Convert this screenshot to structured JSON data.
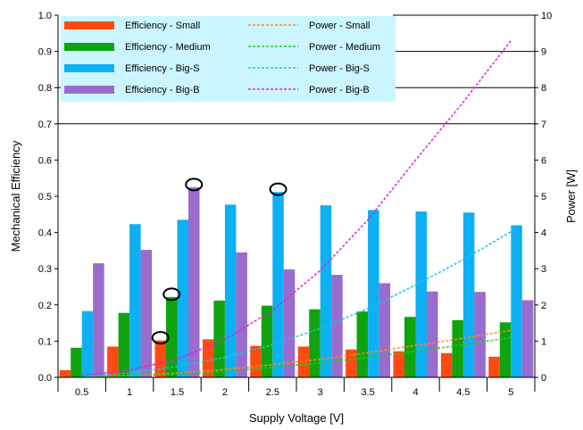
{
  "chart_data": {
    "type": "bar",
    "title": "",
    "xlabel": "Supply Voltage [V]",
    "ylabel": "Mechanical Efficiency",
    "y2label": "Power [W]",
    "categories": [
      "0.5",
      "1",
      "1.5",
      "2",
      "2.5",
      "3",
      "3.5",
      "4",
      "4.5",
      "5"
    ],
    "ylim": [
      0,
      1.0
    ],
    "y2lim": [
      0,
      10
    ],
    "yticks": [
      "0.0",
      "0.1",
      "0.2",
      "0.3",
      "0.4",
      "0.5",
      "0.6",
      "0.7",
      "0.8",
      "0.9",
      "1.0"
    ],
    "y2ticks": [
      "0",
      "1",
      "2",
      "3",
      "4",
      "5",
      "6",
      "7",
      "8",
      "9",
      "10"
    ],
    "grid": "horizontal (upper region)",
    "legend_position": "top-left",
    "series": [
      {
        "name": "Efficiency - Small",
        "kind": "bar",
        "color": "#ff4a12",
        "values": [
          0.02,
          0.085,
          0.102,
          0.105,
          0.087,
          0.085,
          0.077,
          0.072,
          0.067,
          0.057
        ]
      },
      {
        "name": "Efficiency - Medium",
        "kind": "bar",
        "color": "#0fa40f",
        "values": [
          0.082,
          0.178,
          0.222,
          0.212,
          0.198,
          0.188,
          0.182,
          0.167,
          0.158,
          0.152
        ]
      },
      {
        "name": "Efficiency - Big-S",
        "kind": "bar",
        "color": "#0db0f2",
        "values": [
          0.183,
          0.423,
          0.435,
          0.477,
          0.512,
          0.475,
          0.462,
          0.458,
          0.455,
          0.42
        ]
      },
      {
        "name": "Efficiency - Big-B",
        "kind": "bar",
        "color": "#9a6ccd",
        "values": [
          0.315,
          0.352,
          0.525,
          0.345,
          0.298,
          0.283,
          0.26,
          0.237,
          0.236,
          0.213
        ]
      },
      {
        "name": "Power - Small",
        "kind": "line",
        "color": "#ff8c1a",
        "axis": "right",
        "x": [
          0.5,
          1,
          1.5,
          2,
          2.5,
          3,
          3.5,
          4,
          4.5,
          5
        ],
        "values": [
          0.01,
          0.05,
          0.12,
          0.22,
          0.35,
          0.5,
          0.68,
          0.88,
          1.08,
          1.3
        ]
      },
      {
        "name": "Power - Medium",
        "kind": "line",
        "color": "#22cc22",
        "axis": "right",
        "x": [
          0.5,
          1,
          1.5,
          2,
          2.5,
          3,
          3.5,
          4,
          4.5,
          5
        ],
        "values": [
          0.01,
          0.04,
          0.09,
          0.17,
          0.27,
          0.4,
          0.55,
          0.72,
          0.9,
          1.1
        ]
      },
      {
        "name": "Power - Big-S",
        "kind": "line",
        "color": "#22c0dd",
        "axis": "right",
        "x": [
          0.5,
          1,
          1.5,
          2,
          2.5,
          3,
          3.5,
          4,
          4.5,
          5
        ],
        "values": [
          0.02,
          0.12,
          0.3,
          0.55,
          0.9,
          1.35,
          1.9,
          2.55,
          3.25,
          4.02
        ]
      },
      {
        "name": "Power - Big-B",
        "kind": "line",
        "color": "#dd22dd",
        "axis": "right",
        "x": [
          0.5,
          1,
          1.5,
          2,
          2.5,
          3,
          3.5,
          4,
          4.5,
          5
        ],
        "values": [
          0.05,
          0.2,
          0.5,
          1.05,
          1.85,
          2.95,
          4.35,
          6.0,
          7.6,
          9.3
        ]
      }
    ],
    "highlights": [
      {
        "series": "Efficiency - Small",
        "category": "1.5"
      },
      {
        "series": "Efficiency - Medium",
        "category": "1.5"
      },
      {
        "series": "Efficiency - Big-B",
        "category": "1.5"
      },
      {
        "series": "Efficiency - Big-S",
        "category": "2.5"
      }
    ]
  }
}
